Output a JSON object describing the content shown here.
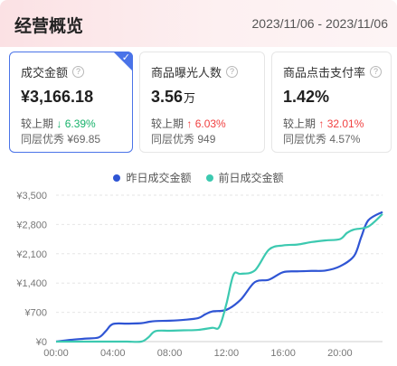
{
  "header": {
    "title": "经营概览",
    "date_range": "2023/11/06 - 2023/11/06"
  },
  "cards": [
    {
      "label": "成交金额",
      "value": "¥3,166.18",
      "unit": "",
      "compare_label": "较上期",
      "compare_arrow": "↓",
      "compare_value": "6.39%",
      "compare_dir": "down",
      "peer_label": "同层优秀",
      "peer_value": "¥69.85",
      "selected": true
    },
    {
      "label": "商品曝光人数",
      "value": "3.56",
      "unit": "万",
      "compare_label": "较上期",
      "compare_arrow": "↑",
      "compare_value": "6.03%",
      "compare_dir": "up",
      "peer_label": "同层优秀",
      "peer_value": "949",
      "selected": false
    },
    {
      "label": "商品点击支付率",
      "value": "1.42%",
      "unit": "",
      "compare_label": "较上期",
      "compare_arrow": "↑",
      "compare_value": "32.01%",
      "compare_dir": "up",
      "peer_label": "同层优秀",
      "peer_value": "4.57%",
      "selected": false
    }
  ],
  "colors": {
    "series_yesterday": "#2f55d4",
    "series_day_before": "#3cc9b0",
    "accent": "#4a73e8",
    "down": "#18b26b",
    "up": "#f04040"
  },
  "chart_data": {
    "type": "line",
    "legend": [
      "昨日成交金额",
      "前日成交金额"
    ],
    "legend_position": "top-center",
    "x_ticks": [
      "00:00",
      "04:00",
      "08:00",
      "12:00",
      "16:00",
      "20:00"
    ],
    "y_ticks": [
      "¥0",
      "¥700",
      "¥1,400",
      "¥2,100",
      "¥2,800",
      "¥3,500"
    ],
    "xlim": [
      0,
      23
    ],
    "ylim": [
      0,
      3500
    ],
    "grid": "horizontal-dashed",
    "series": [
      {
        "name": "昨日成交金额",
        "x": [
          0,
          1,
          2,
          3,
          3.5,
          4,
          5,
          6,
          6.5,
          7,
          8,
          9,
          10,
          10.5,
          11,
          12,
          13,
          14,
          15,
          16,
          17,
          18,
          19,
          20,
          21,
          21.5,
          22,
          23
        ],
        "y": [
          0,
          40,
          70,
          100,
          250,
          420,
          430,
          440,
          470,
          490,
          500,
          520,
          560,
          650,
          720,
          760,
          1000,
          1420,
          1480,
          1660,
          1680,
          1690,
          1700,
          1800,
          2050,
          2500,
          2900,
          3100
        ]
      },
      {
        "name": "前日成交金额",
        "x": [
          0,
          1,
          2,
          3,
          4,
          5,
          6,
          6.5,
          7,
          8,
          9,
          10,
          11,
          11.5,
          12,
          12.5,
          13,
          14,
          15,
          16,
          17,
          18,
          19,
          20,
          20.5,
          21,
          22,
          23
        ],
        "y": [
          0,
          0,
          0,
          0,
          0,
          0,
          0,
          100,
          250,
          260,
          270,
          280,
          330,
          350,
          900,
          1600,
          1620,
          1700,
          2200,
          2300,
          2320,
          2380,
          2420,
          2450,
          2600,
          2680,
          2750,
          3050
        ]
      }
    ]
  }
}
